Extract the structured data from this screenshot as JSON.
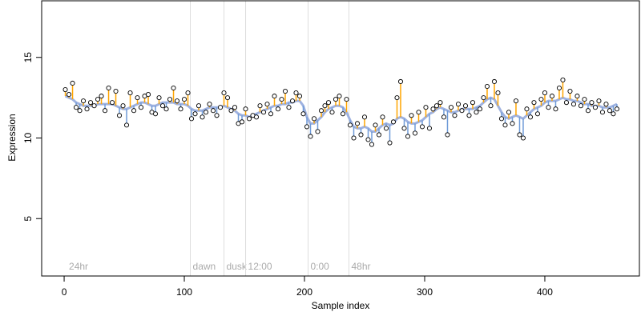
{
  "chart_data": {
    "type": "scatter",
    "x_label": "Sample index",
    "y_label": "Expression",
    "xlim": [
      -18.7,
      478.7
    ],
    "ylim": [
      1.44,
      18.51
    ],
    "xticks": [
      0,
      100,
      200,
      300,
      400
    ],
    "yticks": [
      5,
      10,
      15
    ],
    "point_fill": "#ffffff",
    "point_stroke": "#000000",
    "above_color": "#ffa500",
    "below_color": "#6f9bd8",
    "fit_color": "#9fb2e0",
    "marker_color": "#dddddd",
    "marker_label_color": "#aaaaaa",
    "markers": [
      {
        "x": 2,
        "label": "24hr",
        "line": false
      },
      {
        "x": 105,
        "label": "dawn",
        "line": true
      },
      {
        "x": 133,
        "label": "dusk",
        "line": true
      },
      {
        "x": 151,
        "label": "12:00",
        "line": true
      },
      {
        "x": 203,
        "label": "0:00",
        "line": true
      },
      {
        "x": 237,
        "label": "48hr",
        "line": true
      }
    ],
    "x": [
      1,
      4,
      7,
      10,
      13,
      16,
      19,
      22,
      25,
      28,
      31,
      34,
      37,
      40,
      43,
      46,
      49,
      52,
      55,
      58,
      61,
      64,
      67,
      70,
      73,
      76,
      79,
      82,
      85,
      88,
      91,
      94,
      97,
      100,
      103,
      106,
      109,
      112,
      115,
      118,
      121,
      124,
      127,
      130,
      133,
      136,
      139,
      142,
      145,
      148,
      151,
      154,
      157,
      160,
      163,
      166,
      169,
      172,
      175,
      178,
      181,
      184,
      187,
      190,
      193,
      196,
      199,
      202,
      205,
      208,
      211,
      214,
      217,
      220,
      223,
      226,
      229,
      232,
      235,
      238,
      241,
      244,
      247,
      250,
      253,
      256,
      259,
      262,
      265,
      268,
      271,
      274,
      277,
      280,
      283,
      286,
      289,
      292,
      295,
      298,
      301,
      304,
      307,
      310,
      313,
      316,
      319,
      322,
      325,
      328,
      331,
      334,
      337,
      340,
      343,
      346,
      349,
      352,
      355,
      358,
      361,
      364,
      367,
      370,
      373,
      376,
      379,
      382,
      385,
      388,
      391,
      394,
      397,
      400,
      403,
      406,
      409,
      412,
      415,
      418,
      421,
      424,
      427,
      430,
      433,
      436,
      439,
      442,
      445,
      448,
      451,
      454,
      457,
      460
    ],
    "values": [
      13.0,
      12.7,
      13.4,
      11.9,
      11.7,
      12.3,
      11.8,
      12.2,
      12.0,
      12.4,
      12.6,
      11.7,
      13.1,
      12.2,
      12.9,
      11.4,
      12.0,
      10.8,
      12.8,
      11.7,
      12.5,
      11.9,
      12.6,
      12.7,
      11.6,
      11.5,
      12.5,
      12.0,
      11.8,
      12.4,
      13.1,
      12.3,
      11.8,
      12.4,
      12.8,
      11.2,
      11.5,
      12.0,
      11.3,
      11.6,
      12.1,
      11.7,
      11.4,
      11.9,
      12.8,
      12.5,
      11.7,
      11.9,
      10.9,
      11.0,
      11.8,
      11.2,
      11.4,
      11.3,
      12.0,
      11.6,
      12.1,
      11.5,
      12.6,
      11.8,
      12.4,
      12.9,
      11.9,
      12.3,
      12.8,
      12.6,
      11.5,
      10.7,
      10.1,
      11.2,
      10.4,
      11.7,
      12.0,
      12.2,
      11.6,
      12.4,
      12.6,
      11.5,
      12.4,
      10.8,
      10.0,
      10.9,
      10.2,
      11.3,
      9.9,
      9.6,
      10.8,
      10.2,
      11.3,
      10.6,
      9.7,
      11.0,
      12.5,
      13.5,
      10.6,
      10.1,
      11.4,
      10.3,
      11.6,
      10.7,
      11.9,
      10.6,
      11.8,
      12.0,
      12.2,
      11.3,
      10.2,
      11.9,
      11.4,
      12.1,
      11.7,
      12.0,
      11.4,
      12.2,
      11.6,
      11.8,
      12.5,
      13.2,
      12.0,
      13.5,
      12.8,
      11.2,
      10.8,
      11.6,
      10.9,
      12.3,
      10.2,
      10.0,
      11.8,
      11.3,
      12.2,
      11.5,
      12.4,
      12.8,
      11.9,
      12.6,
      11.8,
      13.1,
      13.6,
      12.2,
      12.9,
      12.1,
      12.6,
      12.0,
      12.4,
      11.7,
      12.2,
      11.9,
      12.3,
      11.6,
      12.1,
      11.7,
      11.5,
      11.8
    ],
    "fit": [
      12.6,
      12.5,
      12.4,
      12.2,
      12.1,
      12.0,
      12.0,
      12.0,
      12.0,
      12.1,
      12.1,
      12.1,
      12.1,
      12.1,
      12.0,
      11.9,
      11.8,
      11.8,
      11.9,
      12.0,
      12.1,
      12.2,
      12.2,
      12.1,
      12.0,
      12.0,
      12.1,
      12.2,
      12.2,
      12.2,
      12.2,
      12.1,
      12.1,
      12.1,
      12.0,
      11.8,
      11.7,
      11.7,
      11.7,
      11.8,
      11.9,
      11.9,
      11.9,
      11.9,
      12.0,
      11.9,
      11.8,
      11.7,
      11.5,
      11.4,
      11.4,
      11.3,
      11.4,
      11.5,
      11.6,
      11.7,
      11.8,
      11.9,
      12.0,
      12.0,
      12.1,
      12.1,
      12.2,
      12.2,
      12.3,
      12.3,
      12.0,
      11.3,
      10.9,
      10.9,
      11.1,
      11.3,
      11.6,
      11.8,
      11.9,
      12.0,
      12.0,
      11.9,
      11.6,
      11.1,
      10.7,
      10.6,
      10.6,
      10.7,
      10.6,
      10.4,
      10.4,
      10.6,
      10.8,
      10.9,
      10.8,
      10.9,
      11.2,
      11.3,
      11.2,
      11.0,
      10.9,
      10.9,
      11.0,
      11.1,
      11.3,
      11.5,
      11.6,
      11.8,
      11.9,
      11.8,
      11.7,
      11.6,
      11.6,
      11.7,
      11.8,
      11.8,
      11.8,
      11.8,
      11.9,
      12.0,
      12.2,
      12.4,
      12.5,
      12.4,
      12.0,
      11.6,
      11.3,
      11.2,
      11.3,
      11.4,
      11.3,
      11.2,
      11.4,
      11.6,
      11.8,
      11.9,
      12.0,
      12.2,
      12.3,
      12.3,
      12.3,
      12.4,
      12.5,
      12.4,
      12.4,
      12.3,
      12.3,
      12.2,
      12.1,
      12.1,
      12.0,
      12.0,
      12.0,
      11.9,
      11.9,
      11.9,
      12.0,
      12.1
    ]
  }
}
